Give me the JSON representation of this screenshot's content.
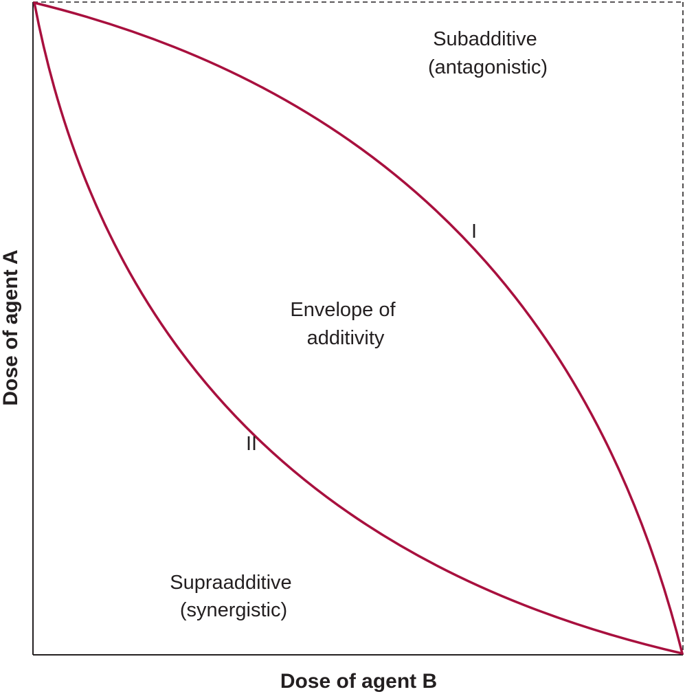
{
  "axes": {
    "x_label": "Dose of agent B",
    "y_label": "Dose of agent A"
  },
  "regions": {
    "subadditive": [
      "Subadditive",
      "(antagonistic)"
    ],
    "envelope": [
      "Envelope of",
      "additivity"
    ],
    "supraadditive": [
      "Supraadditive",
      "(synergistic)"
    ]
  },
  "curves": {
    "upper_label": "I",
    "lower_label": "II",
    "color": "#a8103e"
  },
  "colors": {
    "frame": "#231f20",
    "text": "#231f20"
  }
}
